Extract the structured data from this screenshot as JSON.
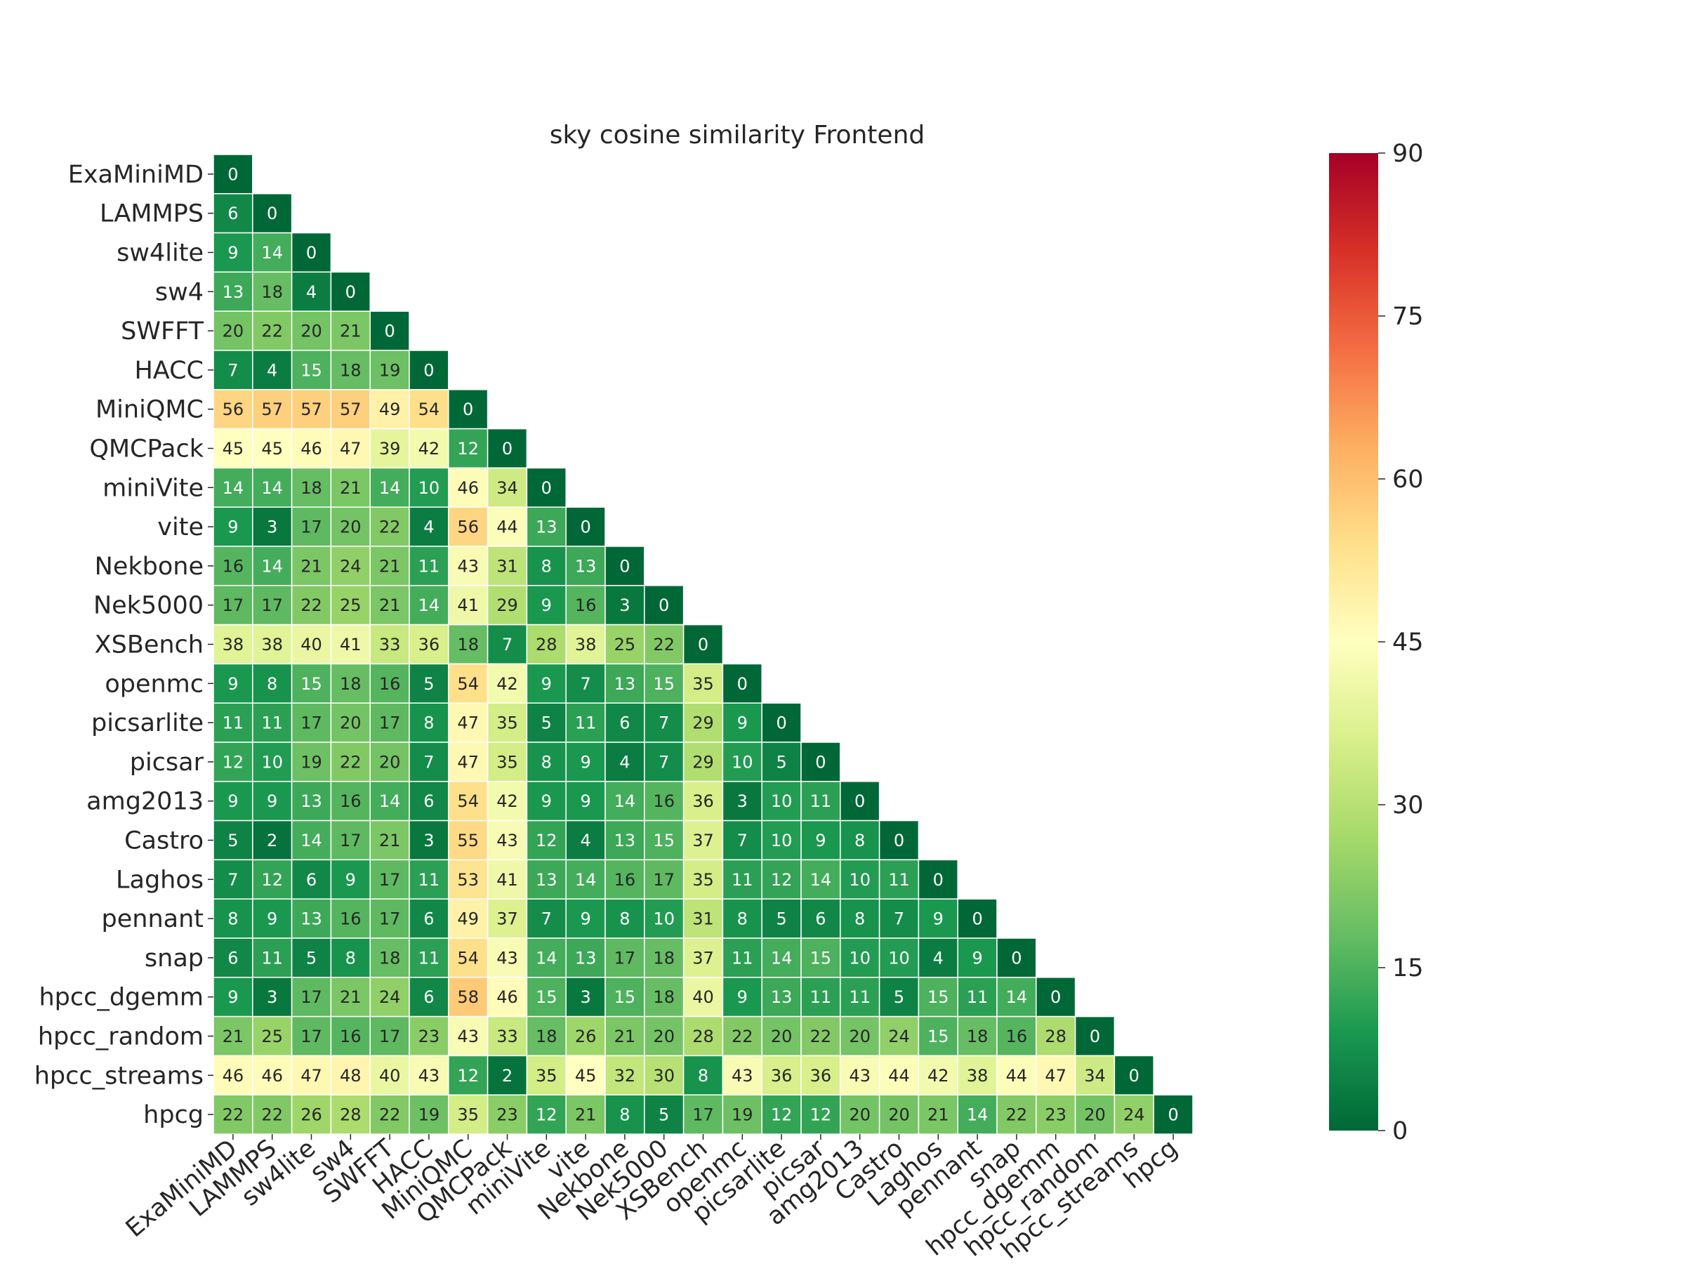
{
  "chart_data": {
    "type": "heatmap",
    "title": "sky cosine similarity Frontend",
    "labels": [
      "ExaMiniMD",
      "LAMMPS",
      "sw4lite",
      "sw4",
      "SWFFT",
      "HACC",
      "MiniQMC",
      "QMCPack",
      "miniVite",
      "vite",
      "Nekbone",
      "Nek5000",
      "XSBench",
      "openmc",
      "picsarlite",
      "picsar",
      "amg2013",
      "Castro",
      "Laghos",
      "pennant",
      "snap",
      "hpcc_dgemm",
      "hpcc_random",
      "hpcc_streams",
      "hpcg"
    ],
    "matrix": [
      [
        0
      ],
      [
        6,
        0
      ],
      [
        9,
        14,
        0
      ],
      [
        13,
        18,
        4,
        0
      ],
      [
        20,
        22,
        20,
        21,
        0
      ],
      [
        7,
        4,
        15,
        18,
        19,
        0
      ],
      [
        56,
        57,
        57,
        57,
        49,
        54,
        0
      ],
      [
        45,
        45,
        46,
        47,
        39,
        42,
        12,
        0
      ],
      [
        14,
        14,
        18,
        21,
        14,
        10,
        46,
        34,
        0
      ],
      [
        9,
        3,
        17,
        20,
        22,
        4,
        56,
        44,
        13,
        0
      ],
      [
        16,
        14,
        21,
        24,
        21,
        11,
        43,
        31,
        8,
        13,
        0
      ],
      [
        17,
        17,
        22,
        25,
        21,
        14,
        41,
        29,
        9,
        16,
        3,
        0
      ],
      [
        38,
        38,
        40,
        41,
        33,
        36,
        18,
        7,
        28,
        38,
        25,
        22,
        0
      ],
      [
        9,
        8,
        15,
        18,
        16,
        5,
        54,
        42,
        9,
        7,
        13,
        15,
        35,
        0
      ],
      [
        11,
        11,
        17,
        20,
        17,
        8,
        47,
        35,
        5,
        11,
        6,
        7,
        29,
        9,
        0
      ],
      [
        12,
        10,
        19,
        22,
        20,
        7,
        47,
        35,
        8,
        9,
        4,
        7,
        29,
        10,
        5,
        0
      ],
      [
        9,
        9,
        13,
        16,
        14,
        6,
        54,
        42,
        9,
        9,
        14,
        16,
        36,
        3,
        10,
        11,
        0
      ],
      [
        5,
        2,
        14,
        17,
        21,
        3,
        55,
        43,
        12,
        4,
        13,
        15,
        37,
        7,
        10,
        9,
        8,
        0
      ],
      [
        7,
        12,
        6,
        9,
        17,
        11,
        53,
        41,
        13,
        14,
        16,
        17,
        35,
        11,
        12,
        14,
        10,
        11,
        0
      ],
      [
        8,
        9,
        13,
        16,
        17,
        6,
        49,
        37,
        7,
        9,
        8,
        10,
        31,
        8,
        5,
        6,
        8,
        7,
        9,
        0
      ],
      [
        6,
        11,
        5,
        8,
        18,
        11,
        54,
        43,
        14,
        13,
        17,
        18,
        37,
        11,
        14,
        15,
        10,
        10,
        4,
        9,
        0
      ],
      [
        9,
        3,
        17,
        21,
        24,
        6,
        58,
        46,
        15,
        3,
        15,
        18,
        40,
        9,
        13,
        11,
        11,
        5,
        15,
        11,
        14,
        0
      ],
      [
        21,
        25,
        17,
        16,
        17,
        23,
        43,
        33,
        18,
        26,
        21,
        20,
        28,
        22,
        20,
        22,
        20,
        24,
        15,
        18,
        16,
        28,
        0
      ],
      [
        46,
        46,
        47,
        48,
        40,
        43,
        12,
        2,
        35,
        45,
        32,
        30,
        8,
        43,
        36,
        36,
        43,
        44,
        42,
        38,
        44,
        47,
        34,
        0
      ],
      [
        22,
        22,
        26,
        28,
        22,
        19,
        35,
        23,
        12,
        21,
        8,
        5,
        17,
        19,
        12,
        12,
        20,
        20,
        21,
        14,
        22,
        23,
        20,
        24,
        0
      ]
    ],
    "vmin": 0,
    "vmax": 90,
    "colormap": "RdYlGn_r",
    "colorbar_ticks": [
      0,
      15,
      30,
      45,
      60,
      75,
      90
    ],
    "mask": "upper-triangle"
  }
}
